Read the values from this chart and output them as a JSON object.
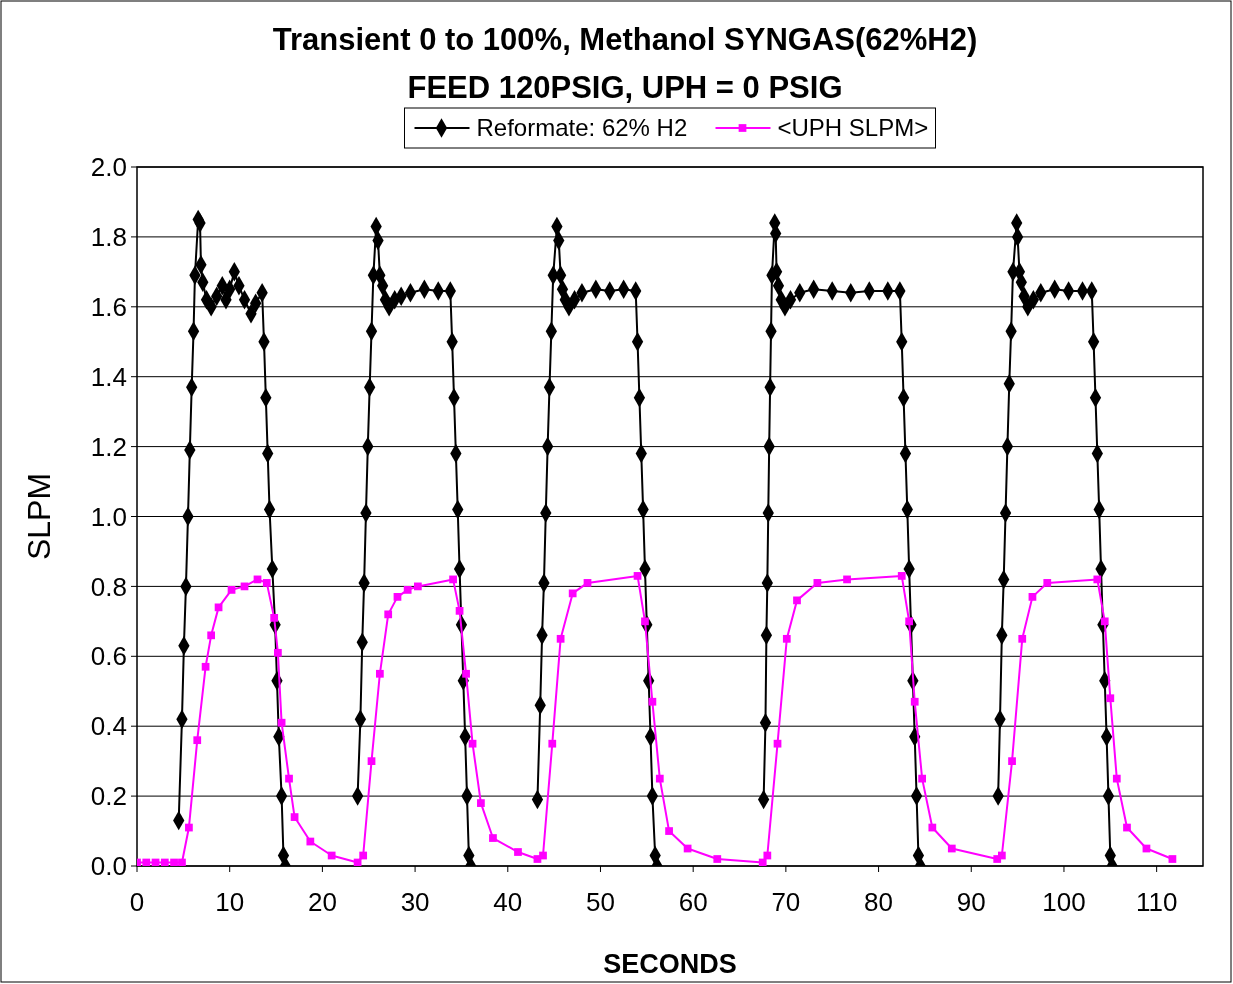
{
  "chart_data": {
    "type": "line",
    "title": "Transient 0 to 100%, Methanol SYNGAS(62%H2)",
    "subtitle": "FEED 120PSIG, UPH = 0 PSIG",
    "xlabel": "SECONDS",
    "ylabel": "SLPM",
    "xlim": [
      0,
      115
    ],
    "xticks": [
      0,
      10,
      20,
      30,
      40,
      50,
      60,
      70,
      80,
      90,
      100,
      110
    ],
    "ylim": [
      0,
      2
    ],
    "yticks": [
      {
        "value": 0,
        "label": "0.0"
      },
      {
        "value": 0.2,
        "label": "0.2"
      },
      {
        "value": 0.4,
        "label": "0.4"
      },
      {
        "value": 0.6,
        "label": "0.6"
      },
      {
        "value": 0.8,
        "label": "0.8"
      },
      {
        "value": 1,
        "label": "1.0"
      },
      {
        "value": 1.2,
        "label": "1.2"
      },
      {
        "value": 1.4,
        "label": "1.4"
      },
      {
        "value": 1.6,
        "label": "1.6"
      },
      {
        "value": 1.8,
        "label": "1.8"
      },
      {
        "value": 2,
        "label": "2.0"
      }
    ],
    "grid": "y",
    "legend": "top",
    "series": [
      {
        "name": "Reformate: 62% H2",
        "color": "#000000",
        "marker": "diamond",
        "x": [
          4.5,
          4.85,
          5.06,
          5.28,
          5.5,
          5.7,
          5.9,
          6.1,
          6.25,
          6.6,
          6.8,
          6.9,
          7.1,
          7.5,
          8.0,
          8.6,
          9.2,
          9.6,
          10.0,
          10.5,
          11.0,
          11.6,
          12.3,
          12.8,
          13.5,
          13.7,
          13.9,
          14.1,
          14.3,
          14.6,
          14.9,
          15.1,
          15.3,
          15.6,
          15.8,
          16.0,
          20,
          23.8,
          24.1,
          24.3,
          24.5,
          24.7,
          24.9,
          25.1,
          25.3,
          25.5,
          25.8,
          26.0,
          26.2,
          26.5,
          26.8,
          27.2,
          27.8,
          28.5,
          29.5,
          31.0,
          32.5,
          33.8,
          34.0,
          34.2,
          34.4,
          34.6,
          34.8,
          35.0,
          35.2,
          35.4,
          35.6,
          35.8,
          36.0,
          40,
          43.2,
          43.5,
          43.7,
          43.9,
          44.1,
          44.3,
          44.5,
          44.7,
          44.9,
          45.3,
          45.5,
          45.7,
          45.9,
          46.2,
          46.6,
          47.2,
          48.0,
          49.5,
          51,
          52.5,
          53.8,
          54.0,
          54.2,
          54.4,
          54.6,
          54.8,
          55.0,
          55.2,
          55.4,
          55.6,
          55.9,
          56.1,
          60,
          67.6,
          67.8,
          67.9,
          68.0,
          68.1,
          68.2,
          68.3,
          68.4,
          68.5,
          68.8,
          68.9,
          69.0,
          69.2,
          69.5,
          69.9,
          70.5,
          71.5,
          73,
          75,
          77,
          79,
          81,
          82.3,
          82.5,
          82.7,
          82.9,
          83.1,
          83.3,
          83.5,
          83.7,
          83.9,
          84.1,
          84.3,
          84.5,
          88,
          92.9,
          93.1,
          93.3,
          93.5,
          93.7,
          93.9,
          94.1,
          94.3,
          94.5,
          94.9,
          95.0,
          95.2,
          95.4,
          95.7,
          96.1,
          96.7,
          97.5,
          99,
          100.5,
          102,
          103.0,
          103.2,
          103.4,
          103.6,
          103.8,
          104.0,
          104.2,
          104.4,
          104.6,
          104.8,
          105.0,
          105.2
        ],
        "values": [
          0.13,
          0.42,
          0.63,
          0.8,
          1.0,
          1.19,
          1.37,
          1.53,
          1.69,
          1.85,
          1.84,
          1.72,
          1.67,
          1.62,
          1.6,
          1.63,
          1.66,
          1.62,
          1.65,
          1.7,
          1.66,
          1.62,
          1.58,
          1.61,
          1.64,
          1.5,
          1.34,
          1.18,
          1.02,
          0.85,
          0.69,
          0.53,
          0.37,
          0.2,
          0.03,
          0.0,
          null,
          0.2,
          0.42,
          0.64,
          0.81,
          1.01,
          1.2,
          1.37,
          1.53,
          1.69,
          1.83,
          1.79,
          1.69,
          1.66,
          1.62,
          1.6,
          1.62,
          1.63,
          1.64,
          1.65,
          1.645,
          1.645,
          1.5,
          1.34,
          1.18,
          1.02,
          0.85,
          0.69,
          0.53,
          0.37,
          0.2,
          0.03,
          0.0,
          null,
          0.19,
          0.46,
          0.66,
          0.81,
          1.01,
          1.2,
          1.37,
          1.53,
          1.69,
          1.83,
          1.79,
          1.69,
          1.65,
          1.62,
          1.6,
          1.62,
          1.64,
          1.65,
          1.645,
          1.65,
          1.645,
          1.5,
          1.34,
          1.18,
          1.02,
          0.85,
          0.69,
          0.53,
          0.37,
          0.2,
          0.03,
          0.0,
          null,
          0.19,
          0.41,
          0.66,
          0.81,
          1.01,
          1.2,
          1.37,
          1.53,
          1.69,
          1.84,
          1.81,
          1.7,
          1.66,
          1.62,
          1.6,
          1.62,
          1.64,
          1.65,
          1.645,
          1.64,
          1.645,
          1.645,
          1.645,
          1.5,
          1.34,
          1.18,
          1.02,
          0.85,
          0.69,
          0.53,
          0.37,
          0.2,
          0.03,
          0.0,
          null,
          0.2,
          0.42,
          0.66,
          0.82,
          1.01,
          1.2,
          1.38,
          1.53,
          1.7,
          1.84,
          1.8,
          1.7,
          1.67,
          1.63,
          1.6,
          1.62,
          1.64,
          1.65,
          1.645,
          1.645,
          1.645,
          1.5,
          1.34,
          1.18,
          1.02,
          0.85,
          0.69,
          0.53,
          0.37,
          0.2,
          0.03,
          0.0
        ]
      },
      {
        "name": "<UPH SLPM>",
        "color": "#ff00ff",
        "marker": "square",
        "x": [
          0,
          1,
          2,
          3,
          4,
          4.85,
          5.6,
          6.5,
          7.4,
          8.0,
          8.8,
          10.2,
          11.6,
          13.0,
          14.0,
          14.8,
          15.2,
          15.6,
          16.4,
          17.0,
          18.7,
          21.0,
          23.8,
          24.4,
          25.3,
          26.2,
          27.1,
          28.1,
          29.2,
          30.3,
          34.1,
          34.8,
          35.5,
          36.2,
          37.1,
          38.4,
          41.1,
          43.2,
          43.8,
          44.8,
          45.7,
          47.0,
          48.6,
          54.0,
          54.8,
          55.6,
          56.4,
          57.4,
          59.4,
          62.6,
          67.5,
          68.0,
          69.1,
          70.1,
          71.2,
          73.4,
          76.6,
          82.5,
          83.3,
          83.9,
          84.7,
          85.8,
          87.9,
          92.8,
          93.3,
          94.4,
          95.5,
          96.6,
          98.2,
          103.6,
          104.4,
          105.0,
          105.7,
          106.8,
          108.9,
          111.7
        ],
        "values": [
          0.01,
          0.01,
          0.01,
          0.01,
          0.01,
          0.01,
          0.11,
          0.36,
          0.57,
          0.66,
          0.74,
          0.79,
          0.8,
          0.82,
          0.81,
          0.71,
          0.61,
          0.41,
          0.25,
          0.14,
          0.07,
          0.03,
          0.01,
          0.03,
          0.3,
          0.55,
          0.72,
          0.77,
          0.79,
          0.8,
          0.82,
          0.73,
          0.55,
          0.35,
          0.18,
          0.08,
          0.04,
          0.02,
          0.03,
          0.35,
          0.65,
          0.78,
          0.81,
          0.83,
          0.7,
          0.47,
          0.25,
          0.1,
          0.05,
          0.02,
          0.01,
          0.03,
          0.35,
          0.65,
          0.76,
          0.81,
          0.82,
          0.83,
          0.7,
          0.47,
          0.25,
          0.11,
          0.05,
          0.02,
          0.03,
          0.3,
          0.65,
          0.77,
          0.81,
          0.82,
          0.7,
          0.48,
          0.25,
          0.11,
          0.05,
          0.02
        ]
      }
    ]
  }
}
